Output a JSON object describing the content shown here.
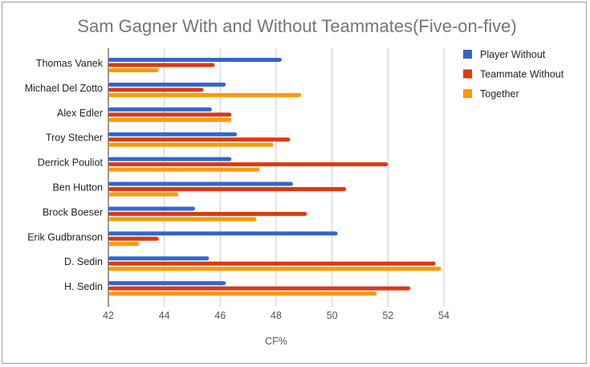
{
  "chart_data": {
    "type": "bar",
    "orientation": "horizontal",
    "title": "Sam Gagner With and Without Teammates(Five-on-five)",
    "xlabel": "CF%",
    "ylabel": "",
    "xlim": [
      42,
      54
    ],
    "xticks": [
      42,
      44,
      46,
      48,
      50,
      52,
      54
    ],
    "grid": true,
    "legend_position": "right",
    "categories": [
      "Thomas Vanek",
      "Michael Del Zotto",
      "Alex Edler",
      "Troy Stecher",
      "Derrick Pouliot",
      "Ben Hutton",
      "Brock Boeser",
      "Erik Gudbranson",
      "D. Sedin",
      "H. Sedin"
    ],
    "series": [
      {
        "name": "Player Without",
        "color": "#3366cc",
        "values": [
          48.2,
          46.2,
          45.7,
          46.6,
          46.4,
          48.6,
          45.1,
          50.2,
          45.6,
          46.2
        ]
      },
      {
        "name": "Teammate Without",
        "color": "#dc3912",
        "values": [
          45.8,
          45.4,
          46.4,
          48.5,
          52.0,
          50.5,
          49.1,
          43.8,
          53.7,
          52.8
        ]
      },
      {
        "name": "Together",
        "color": "#ff9900",
        "values": [
          43.8,
          48.9,
          46.4,
          47.9,
          47.4,
          44.5,
          47.3,
          43.1,
          53.9,
          51.6
        ]
      }
    ]
  }
}
